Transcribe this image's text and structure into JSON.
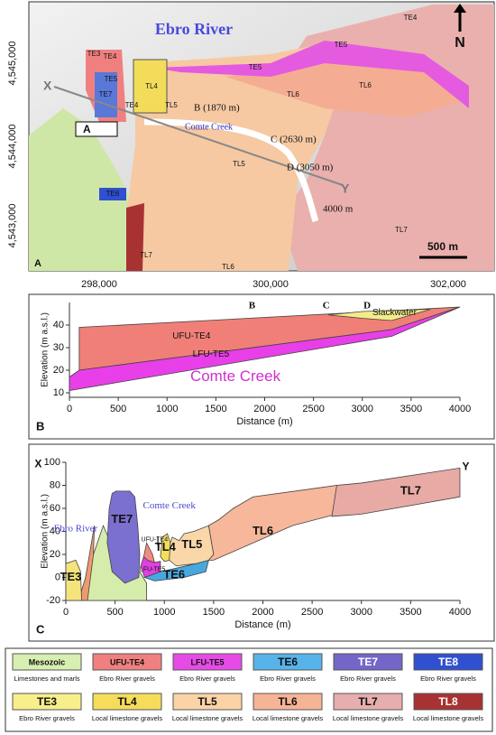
{
  "map": {
    "panel": "A",
    "river": "Ebro River",
    "north": "N",
    "yticks": [
      "4,545,000",
      "4,544,000",
      "4,543,000"
    ],
    "xticks": [
      "298,000",
      "300,000",
      "302,000"
    ],
    "units": [
      "TE4",
      "TE5",
      "TE3",
      "TE4",
      "TE5",
      "TE7",
      "TL4",
      "TE5",
      "TL6",
      "TL6",
      "TL5",
      "TE4",
      "TE6",
      "TL5",
      "TL7",
      "TL7",
      "TL6"
    ],
    "points": [
      "B (1870 m)",
      "C (2630 m)",
      "D (3050 m)",
      "4000 m"
    ],
    "creek": "Comte Creek",
    "section": [
      "X",
      "Y"
    ],
    "arrow_label": "A",
    "scale": "500 m"
  },
  "chart_data": [
    {
      "type": "area",
      "panel": "B",
      "xlabel": "Distance  (m)",
      "ylabel": "Elevation (m a.s.l.)",
      "xlim": [
        0,
        4000
      ],
      "ylim": [
        8,
        50
      ],
      "xticks": [
        0,
        500,
        1000,
        1500,
        2000,
        2500,
        3000,
        3500,
        4000
      ],
      "yticks": [
        10,
        20,
        30,
        40
      ],
      "series": [
        {
          "name": "UFU-TE4",
          "color": "#f07f78",
          "x": [
            100,
            4000,
            3300,
            100
          ],
          "y": [
            39,
            48,
            38,
            20
          ]
        },
        {
          "name": "LFU-TE5",
          "color": "#e83fe8",
          "x": [
            0,
            100,
            3300,
            4000,
            3300,
            0
          ],
          "y": [
            17,
            20,
            38,
            48,
            35,
            11
          ]
        },
        {
          "name": "Slackwater",
          "color": "#f3ec8a",
          "x": [
            2650,
            3000,
            3300,
            3700,
            3300,
            3000
          ],
          "y": [
            44.5,
            46,
            46.5,
            47,
            42,
            43
          ]
        }
      ],
      "markers": [
        {
          "label": "B",
          "x": 1870
        },
        {
          "label": "C",
          "x": 2630
        },
        {
          "label": "D",
          "x": 3050
        }
      ],
      "annotations": [
        "Comte Creek"
      ]
    },
    {
      "type": "area",
      "panel": "C",
      "xlabel": "Distance  (m)",
      "ylabel": "Elevation (m a.s.l.)",
      "xlim": [
        0,
        4000
      ],
      "ylim": [
        -20,
        100
      ],
      "xticks": [
        0,
        500,
        1000,
        1500,
        2000,
        2500,
        3000,
        3500,
        4000
      ],
      "yticks": [
        -20,
        0,
        20,
        40,
        60,
        80,
        100
      ],
      "series": [
        {
          "color": "#d5ecab",
          "x": [
            150,
            280,
            380,
            430,
            470,
            600,
            750,
            820,
            820
          ],
          "y": [
            -20,
            20,
            45,
            35,
            10,
            5,
            5,
            -5,
            -20
          ]
        },
        {
          "color": "#ef9a6e",
          "x": [
            130,
            200,
            260,
            290,
            280,
            220
          ],
          "y": [
            -20,
            0,
            30,
            45,
            20,
            -20
          ]
        },
        {
          "name": "TE3",
          "color": "#f5e47c",
          "x": [
            0,
            0,
            100,
            150,
            160
          ],
          "y": [
            -20,
            12,
            15,
            5,
            -20
          ]
        },
        {
          "name": "TE7",
          "color": "#7b6fd0",
          "x": [
            420,
            440,
            470,
            510,
            650,
            700,
            730,
            750,
            740,
            600,
            470
          ],
          "y": [
            30,
            60,
            73,
            75,
            75,
            70,
            45,
            20,
            0,
            -5,
            5
          ]
        },
        {
          "name": "LFU-TE5",
          "color": "#e040e0",
          "x": [
            760,
            790,
            830,
            900,
            960,
            960,
            800
          ],
          "y": [
            10,
            18,
            15,
            13,
            14,
            5,
            0
          ]
        },
        {
          "name": "UFU-TE4",
          "color": "#f08a80",
          "x": [
            790,
            820,
            850,
            880,
            900,
            830
          ],
          "y": [
            18,
            30,
            25,
            20,
            13,
            15
          ]
        },
        {
          "name": "TL4",
          "color": "#f3df5a",
          "x": [
            960,
            980,
            1030,
            1060,
            1060,
            1000
          ],
          "y": [
            18,
            35,
            38,
            30,
            15,
            14
          ]
        },
        {
          "name": "TE6",
          "color": "#47a8e0",
          "x": [
            800,
            960,
            1120,
            1320,
            1450,
            1420,
            1200,
            900
          ],
          "y": [
            0,
            5,
            8,
            12,
            15,
            5,
            0,
            -3
          ]
        },
        {
          "name": "TL5",
          "color": "#fad7a8",
          "x": [
            1050,
            1060,
            1080,
            1150,
            1200,
            1300,
            1450,
            1500,
            1450,
            1320,
            1120
          ],
          "y": [
            15,
            30,
            35,
            32,
            38,
            40,
            45,
            20,
            15,
            12,
            10
          ]
        },
        {
          "name": "TL6",
          "color": "#f7b79a",
          "x": [
            1450,
            1500,
            1450,
            1550,
            1700,
            1900,
            2500,
            2750,
            2750,
            2300,
            1500
          ],
          "y": [
            15,
            20,
            45,
            50,
            60,
            70,
            77,
            80,
            55,
            45,
            15
          ]
        },
        {
          "name": "TL7",
          "color": "#e8aaa5",
          "x": [
            2700,
            2750,
            3000,
            4000,
            4000,
            3000
          ],
          "y": [
            53,
            80,
            82,
            95,
            70,
            55
          ]
        }
      ],
      "annotations": [
        "Ebro River",
        "Comte Creek",
        "X",
        "Y"
      ]
    }
  ],
  "legend": [
    {
      "name": "Mesozoic",
      "text": "Limestones and marls",
      "color": "#d7efb0"
    },
    {
      "name": "UFU-TE4",
      "text": "Ebro River gravels",
      "color": "#f08080"
    },
    {
      "name": "LFU-TE5",
      "text": "Ebro River gravels",
      "color": "#e64be6"
    },
    {
      "name": "TE6",
      "text": "Ebro River gravels",
      "color": "#56b4e9"
    },
    {
      "name": "TE7",
      "text": "Ebro River gravels",
      "color": "#7366c8"
    },
    {
      "name": "TE8",
      "text": "Ebro River gravels",
      "color": "#3050d0"
    },
    {
      "name": "TE3",
      "text": "Ebro River gravels",
      "color": "#f7ee8c"
    },
    {
      "name": "TL4",
      "text": "Local limestone gravels",
      "color": "#f5dc5a"
    },
    {
      "name": "TL5",
      "text": "Local limestone gravels",
      "color": "#fbd3a6"
    },
    {
      "name": "TL6",
      "text": "Local limestone gravels",
      "color": "#f6b496"
    },
    {
      "name": "TL7",
      "text": "Local limestone gravels",
      "color": "#e6aeae"
    },
    {
      "name": "TL8",
      "text": "Local limestone gravels",
      "color": "#a83232"
    }
  ]
}
